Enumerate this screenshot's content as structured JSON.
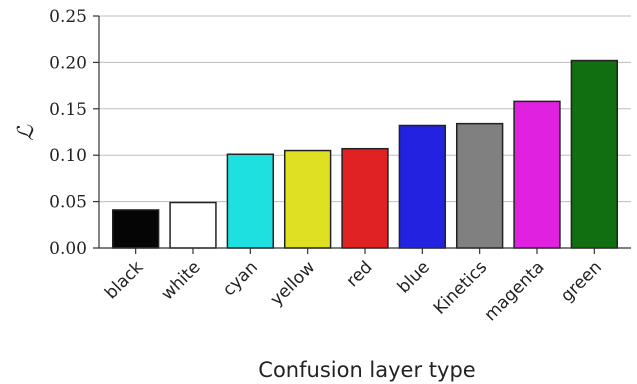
{
  "chart_data": {
    "type": "bar",
    "categories": [
      "black",
      "white",
      "cyan",
      "yellow",
      "red",
      "blue",
      "Kinetics",
      "magenta",
      "green"
    ],
    "values": [
      0.041,
      0.049,
      0.101,
      0.105,
      0.107,
      0.132,
      0.134,
      0.158,
      0.202
    ],
    "colors": [
      "#050505",
      "#ffffff",
      "#1fe0e0",
      "#e0e022",
      "#e02222",
      "#2222e0",
      "#808080",
      "#e022e0",
      "#116e11"
    ],
    "xlabel": "Confusion layer type",
    "ylabel": "ℒ",
    "ylim": [
      0,
      0.25
    ],
    "yticks": [
      "0.00",
      "0.05",
      "0.10",
      "0.15",
      "0.20",
      "0.25"
    ],
    "grid": "horizontal"
  }
}
